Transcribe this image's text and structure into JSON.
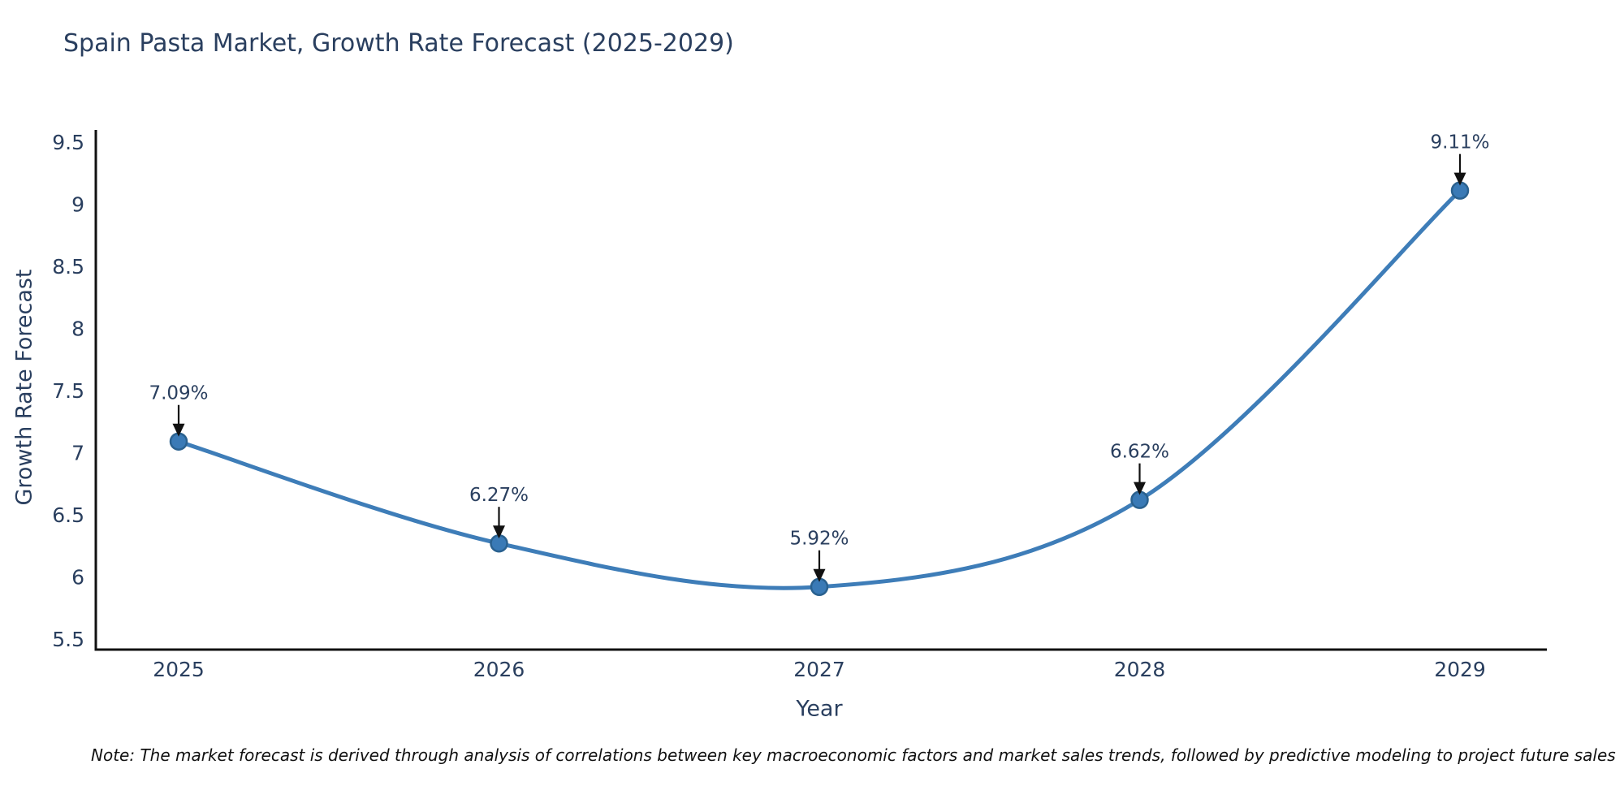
{
  "title": "Spain Pasta Market, Growth Rate Forecast (2025-2029)",
  "note": "Note: The market forecast is derived through analysis of correlations between key macroeconomic factors and market sales trends, followed by predictive modeling to project future sales",
  "chart_data": {
    "type": "line",
    "title": "Spain Pasta Market, Growth Rate Forecast (2025-2029)",
    "xlabel": "Year",
    "ylabel": "Growth Rate Forecast",
    "x": [
      2025,
      2026,
      2027,
      2028,
      2029
    ],
    "xticks": [
      "2025",
      "2026",
      "2027",
      "2028",
      "2029"
    ],
    "series": [
      {
        "name": "Growth Rate Forecast",
        "values": [
          7.09,
          6.27,
          5.92,
          6.62,
          9.11
        ]
      }
    ],
    "point_labels": [
      "7.09%",
      "6.27%",
      "5.92%",
      "6.62%",
      "9.11%"
    ],
    "ylim": [
      5.5,
      9.5
    ],
    "yticks": [
      5.5,
      6,
      6.5,
      7,
      7.5,
      8,
      8.5,
      9,
      9.5
    ],
    "ytick_labels": [
      "5.5",
      "6",
      "6.5",
      "7",
      "7.5",
      "8",
      "8.5",
      "9",
      "9.5"
    ],
    "grid": false,
    "legend_position": "none",
    "line_shape": "spline",
    "annotations": "value labels with downward arrows above each point",
    "colors": {
      "line": "#3e7db8",
      "marker_fill": "#3a7ab6",
      "marker_edge": "#2a618f",
      "axis": "#111111",
      "tick_label": "#2a3f5f",
      "annotation_text": "#2a3f5f",
      "arrow": "#111111",
      "title": "#2a3f5f",
      "background": "#ffffff"
    }
  }
}
